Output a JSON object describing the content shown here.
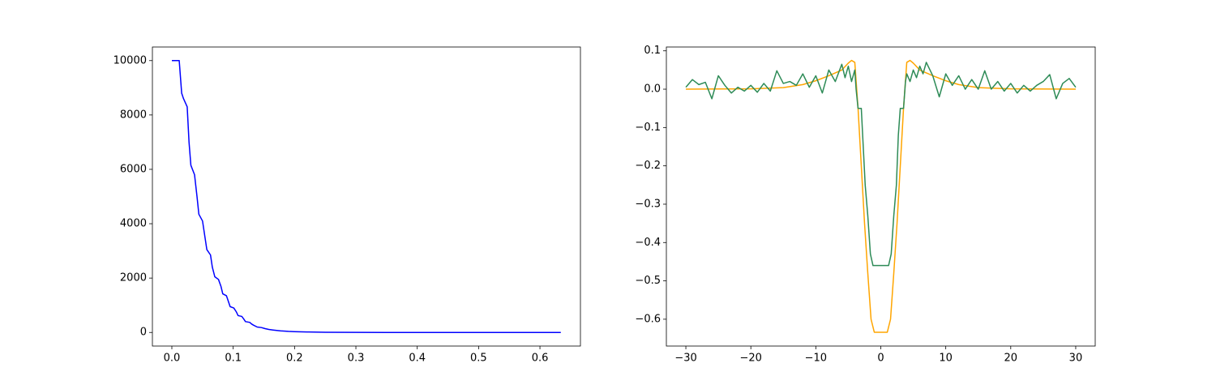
{
  "chart_data": [
    {
      "type": "line",
      "xlim": [
        -0.0317,
        0.666
      ],
      "ylim": [
        -500,
        10500
      ],
      "xticks": [
        {
          "value": 0,
          "label": "0.0"
        },
        0.1,
        0.2,
        0.3,
        0.4,
        0.5,
        0.6
      ],
      "yticks": [
        0,
        2000,
        4000,
        6000,
        8000,
        10000
      ],
      "series": [
        {
          "color": "#0000ff",
          "x": [
            0,
            0.006,
            0.012,
            0.016,
            0.019,
            0.025,
            0.028,
            0.031,
            0.037,
            0.041,
            0.044,
            0.05,
            0.054,
            0.057,
            0.063,
            0.066,
            0.07,
            0.076,
            0.08,
            0.083,
            0.089,
            0.092,
            0.095,
            0.101,
            0.105,
            0.108,
            0.114,
            0.117,
            0.12,
            0.127,
            0.13,
            0.133,
            0.139,
            0.146,
            0.152,
            0.158,
            0.165,
            0.171,
            0.177,
            0.19,
            0.2,
            0.22,
            0.25,
            0.3,
            0.35,
            0.4,
            0.5,
            0.6,
            0.634
          ],
          "values": [
            10000,
            10000,
            10000,
            8800,
            8600,
            8300,
            7000,
            6150,
            5800,
            5000,
            4350,
            4100,
            3500,
            3050,
            2850,
            2400,
            2050,
            1950,
            1700,
            1420,
            1350,
            1150,
            950,
            900,
            760,
            620,
            590,
            500,
            400,
            370,
            310,
            270,
            200,
            180,
            140,
            110,
            90,
            75,
            60,
            40,
            30,
            18,
            8,
            3,
            1,
            0,
            0,
            0,
            0
          ]
        }
      ]
    },
    {
      "type": "line",
      "xlim": [
        -33,
        33
      ],
      "ylim": [
        -0.67,
        0.11
      ],
      "xticks": [
        {
          "value": -30,
          "label": "−30"
        },
        {
          "value": -20,
          "label": "−20"
        },
        {
          "value": -10,
          "label": "−10"
        },
        0,
        10,
        20,
        30
      ],
      "yticks": [
        {
          "value": -0.6,
          "label": "−0.6"
        },
        {
          "value": -0.5,
          "label": "−0.5"
        },
        {
          "value": -0.4,
          "label": "−0.4"
        },
        {
          "value": -0.3,
          "label": "−0.3"
        },
        {
          "value": -0.2,
          "label": "−0.2"
        },
        {
          "value": -0.1,
          "label": "−0.1"
        },
        {
          "value": 0,
          "label": "0.0"
        },
        0.1
      ],
      "series": [
        {
          "color": "#ffa500",
          "x": [
            -30,
            -20,
            -15,
            -12,
            -10,
            -8,
            -6,
            -5,
            -4.5,
            -4,
            -3.5,
            -3,
            -2.5,
            -2,
            -1.5,
            -1,
            1,
            1.5,
            2,
            2.5,
            3,
            3.5,
            4,
            4.5,
            5,
            6,
            8,
            10,
            12,
            15,
            20,
            30
          ],
          "values": [
            0,
            0.001,
            0.004,
            0.012,
            0.022,
            0.035,
            0.05,
            0.068,
            0.075,
            0.07,
            -0.05,
            -0.2,
            -0.35,
            -0.48,
            -0.6,
            -0.634,
            -0.634,
            -0.6,
            -0.48,
            -0.35,
            -0.2,
            -0.05,
            0.07,
            0.075,
            0.068,
            0.05,
            0.035,
            0.022,
            0.012,
            0.004,
            0.001,
            0
          ]
        },
        {
          "color": "#2e8b57",
          "x": [
            -30,
            -29,
            -28,
            -27,
            -26,
            -25,
            -24,
            -23,
            -22,
            -21,
            -20,
            -19,
            -18,
            -17,
            -16,
            -15,
            -14,
            -13,
            -12,
            -11,
            -10,
            -9,
            -8,
            -7,
            -6,
            -5.5,
            -5,
            -4.5,
            -4,
            -3.8,
            -3.5,
            -3,
            -2.7,
            -2.4,
            -2,
            -1.6,
            -1.2,
            1.2,
            1.6,
            2,
            2.4,
            2.7,
            3,
            3.5,
            3.8,
            4,
            4.5,
            5,
            5.5,
            6,
            6.5,
            7,
            8,
            9,
            10,
            11,
            12,
            13,
            14,
            15,
            16,
            17,
            18,
            19,
            20,
            21,
            22,
            23,
            24,
            25,
            26,
            27,
            28,
            29,
            30
          ],
          "values": [
            0.005,
            0.025,
            0.012,
            0.018,
            -0.025,
            0.035,
            0.01,
            -0.01,
            0.005,
            -0.005,
            0.01,
            -0.008,
            0.015,
            -0.005,
            0.048,
            0.015,
            0.02,
            0.01,
            0.04,
            0.005,
            0.035,
            -0.01,
            0.05,
            0.02,
            0.065,
            0.03,
            0.06,
            0.02,
            0.05,
            0.0,
            -0.05,
            -0.05,
            -0.15,
            -0.25,
            -0.33,
            -0.43,
            -0.46,
            -0.46,
            -0.43,
            -0.33,
            -0.25,
            -0.12,
            -0.05,
            -0.05,
            0.02,
            0.04,
            0.02,
            0.05,
            0.03,
            0.06,
            0.04,
            0.07,
            0.035,
            -0.02,
            0.04,
            0.01,
            0.035,
            0.0,
            0.025,
            0.0,
            0.048,
            0.0,
            0.02,
            -0.005,
            0.015,
            -0.01,
            0.01,
            -0.005,
            0.01,
            0.02,
            0.038,
            -0.025,
            0.015,
            0.028,
            0.005
          ]
        }
      ]
    }
  ]
}
